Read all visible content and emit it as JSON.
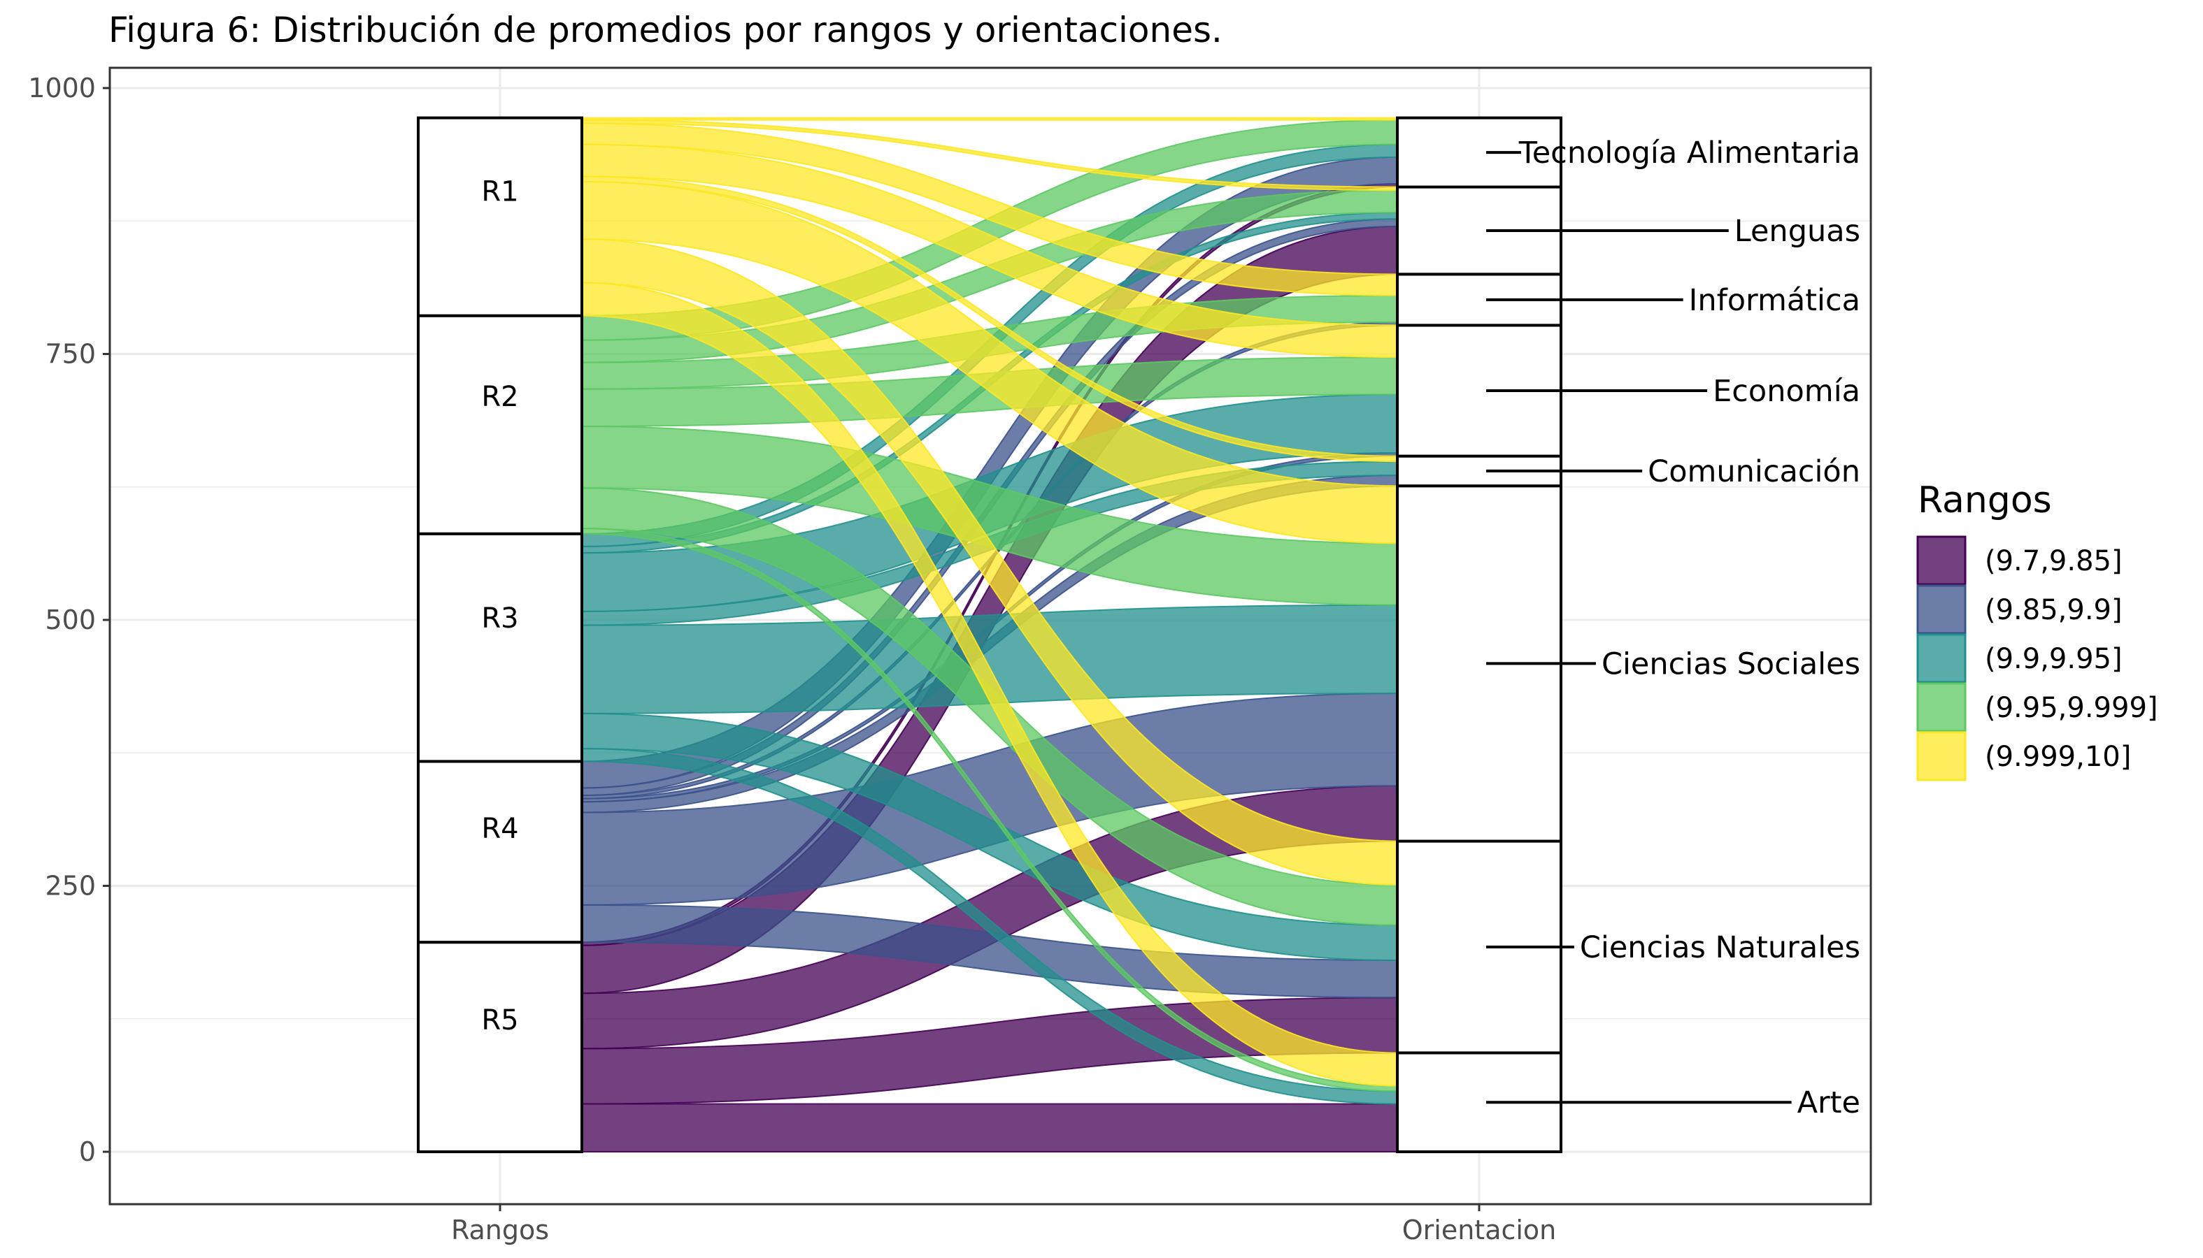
{
  "chart_data": {
    "type": "alluvial",
    "title": "Figura 6: Distribución de promedios por rangos y orientaciones.",
    "axes": [
      "Rangos",
      "Orientacion"
    ],
    "ylim": [
      -10,
      1010
    ],
    "y_ticks": [
      0,
      250,
      500,
      750,
      1000
    ],
    "y_tick_labels": [
      "0",
      "250",
      "500",
      "750",
      "1000"
    ],
    "grid": true,
    "legend": {
      "title": "Rangos",
      "position": "right",
      "entries": [
        {
          "label": "(9.7,9.85]",
          "color": "#440154"
        },
        {
          "label": "(9.85,9.9]",
          "color": "#3B528B"
        },
        {
          "label": "(9.9,9.95]",
          "color": "#21908C"
        },
        {
          "label": "(9.95,9.999]",
          "color": "#5DC863"
        },
        {
          "label": "(9.999,10]",
          "color": "#FDE725"
        }
      ]
    },
    "rangos": [
      {
        "label": "R5",
        "group": 0
      },
      {
        "label": "R4",
        "group": 1
      },
      {
        "label": "R3",
        "group": 2
      },
      {
        "label": "R2",
        "group": 3
      },
      {
        "label": "R1",
        "group": 4
      }
    ],
    "orientaciones": [
      "Arte",
      "Ciencias Naturales",
      "Ciencias Sociales",
      "Comunicación",
      "Informática",
      "Economía",
      "Lenguas",
      "Tecnología Alimentaria"
    ],
    "orientacion_order_bottom_to_top": [
      "Arte",
      "Ciencias Naturales",
      "Ciencias Sociales",
      "Comunicación",
      "Economía",
      "Informática",
      "Lenguas",
      "Tecnología Alimentaria"
    ],
    "flows": [
      {
        "rango": "R5",
        "orientacion": "Arte",
        "value": 45
      },
      {
        "rango": "R5",
        "orientacion": "Ciencias Naturales",
        "value": 52
      },
      {
        "rango": "R5",
        "orientacion": "Ciencias Sociales",
        "value": 52
      },
      {
        "rango": "R5",
        "orientacion": "Comunicación",
        "value": 0
      },
      {
        "rango": "R5",
        "orientacion": "Economía",
        "value": 0
      },
      {
        "rango": "R5",
        "orientacion": "Informática",
        "value": 0
      },
      {
        "rango": "R5",
        "orientacion": "Lenguas",
        "value": 45
      },
      {
        "rango": "R5",
        "orientacion": "Tecnología Alimentaria",
        "value": 3
      },
      {
        "rango": "R4",
        "orientacion": "Arte",
        "value": 0
      },
      {
        "rango": "R4",
        "orientacion": "Ciencias Naturales",
        "value": 35
      },
      {
        "rango": "R4",
        "orientacion": "Ciencias Sociales",
        "value": 87
      },
      {
        "rango": "R4",
        "orientacion": "Comunicación",
        "value": 10
      },
      {
        "rango": "R4",
        "orientacion": "Economía",
        "value": 3
      },
      {
        "rango": "R4",
        "orientacion": "Informática",
        "value": 3
      },
      {
        "rango": "R4",
        "orientacion": "Lenguas",
        "value": 7
      },
      {
        "rango": "R4",
        "orientacion": "Tecnología Alimentaria",
        "value": 25
      },
      {
        "rango": "R3",
        "orientacion": "Arte",
        "value": 12
      },
      {
        "rango": "R3",
        "orientacion": "Ciencias Naturales",
        "value": 33
      },
      {
        "rango": "R3",
        "orientacion": "Ciencias Sociales",
        "value": 83
      },
      {
        "rango": "R3",
        "orientacion": "Comunicación",
        "value": 13
      },
      {
        "rango": "R3",
        "orientacion": "Economía",
        "value": 55
      },
      {
        "rango": "R3",
        "orientacion": "Informática",
        "value": 0
      },
      {
        "rango": "R3",
        "orientacion": "Lenguas",
        "value": 6
      },
      {
        "rango": "R3",
        "orientacion": "Tecnología Alimentaria",
        "value": 12
      },
      {
        "rango": "R2",
        "orientacion": "Arte",
        "value": 5
      },
      {
        "rango": "R2",
        "orientacion": "Ciencias Naturales",
        "value": 38
      },
      {
        "rango": "R2",
        "orientacion": "Ciencias Sociales",
        "value": 58
      },
      {
        "rango": "R2",
        "orientacion": "Comunicación",
        "value": 0
      },
      {
        "rango": "R2",
        "orientacion": "Economía",
        "value": 35
      },
      {
        "rango": "R2",
        "orientacion": "Informática",
        "value": 25
      },
      {
        "rango": "R2",
        "orientacion": "Lenguas",
        "value": 21
      },
      {
        "rango": "R2",
        "orientacion": "Tecnología Alimentaria",
        "value": 23
      },
      {
        "rango": "R1",
        "orientacion": "Arte",
        "value": 31
      },
      {
        "rango": "R1",
        "orientacion": "Ciencias Naturales",
        "value": 41
      },
      {
        "rango": "R1",
        "orientacion": "Ciencias Sociales",
        "value": 54
      },
      {
        "rango": "R1",
        "orientacion": "Comunicación",
        "value": 5
      },
      {
        "rango": "R1",
        "orientacion": "Economía",
        "value": 30
      },
      {
        "rango": "R1",
        "orientacion": "Informática",
        "value": 20
      },
      {
        "rango": "R1",
        "orientacion": "Lenguas",
        "value": 3
      },
      {
        "rango": "R1",
        "orientacion": "Tecnología Alimentaria",
        "value": 2
      }
    ]
  }
}
